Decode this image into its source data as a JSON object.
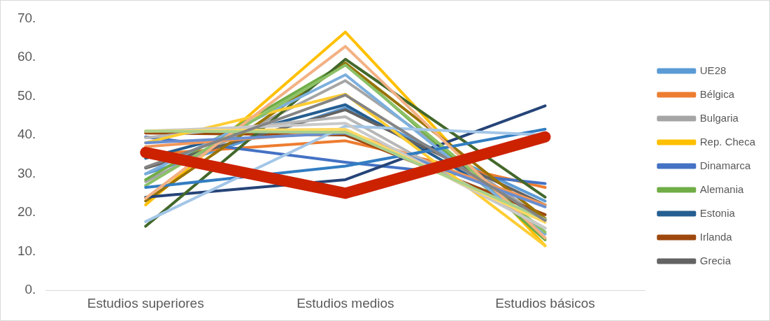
{
  "chart_data": {
    "type": "line",
    "categories": [
      "Estudios superiores",
      "Estudios medios",
      "Estudios básicos"
    ],
    "ylim": [
      0,
      70
    ],
    "yticks": [
      {
        "value": 0,
        "label": "0."
      },
      {
        "value": 10,
        "label": "10."
      },
      {
        "value": 20,
        "label": "20."
      },
      {
        "value": 30,
        "label": "30."
      },
      {
        "value": 40,
        "label": "40."
      },
      {
        "value": 50,
        "label": "50."
      },
      {
        "value": 60,
        "label": "60."
      },
      {
        "value": 70,
        "label": "70."
      }
    ],
    "grid": false,
    "legend": "right",
    "marker": "none",
    "line_style": "solid",
    "series": [
      {
        "name": "UE28",
        "color": "#5b9bd5",
        "values": [
          30,
          47,
          23
        ]
      },
      {
        "name": "Bélgica",
        "color": "#ed7d31",
        "values": [
          35,
          38.5,
          26.5
        ]
      },
      {
        "name": "Bulgaria",
        "color": "#a5a5a5",
        "values": [
          28,
          54,
          18
        ]
      },
      {
        "name": "Rep. Checa",
        "color": "#ffc000",
        "values": [
          22,
          66.5,
          11.5
        ]
      },
      {
        "name": "Dinamarca",
        "color": "#4472c4",
        "values": [
          39.5,
          33,
          27.5
        ]
      },
      {
        "name": "Alemania",
        "color": "#70ad47",
        "values": [
          28.5,
          58.5,
          13
        ]
      },
      {
        "name": "Estonia",
        "color": "#255e91",
        "values": [
          34,
          47.8,
          18.2
        ]
      },
      {
        "name": "Irlanda",
        "color": "#9e480e",
        "values": [
          40.5,
          40,
          19.5
        ]
      },
      {
        "name": "Grecia",
        "color": "#636363",
        "values": [
          31.5,
          46.5,
          22
        ]
      },
      {
        "color": "#997300",
        "values": [
          23,
          58.5,
          18.5
        ]
      },
      {
        "color": "#264478",
        "values": [
          24,
          28.5,
          47.5
        ]
      },
      {
        "color": "#43682b",
        "values": [
          16.5,
          59.5,
          24
        ]
      },
      {
        "color": "#7cafdd",
        "values": [
          30,
          55.5,
          14.5
        ]
      },
      {
        "color": "#f1975a",
        "values": [
          37,
          41,
          22
        ]
      },
      {
        "color": "#b7b7b7",
        "values": [
          39.3,
          44.7,
          16
        ]
      },
      {
        "color": "#ffcd33",
        "values": [
          38,
          50.5,
          11.5
        ]
      },
      {
        "color": "#698ed0",
        "values": [
          38,
          40.5,
          21.5
        ]
      },
      {
        "color": "#8cc168",
        "values": [
          27,
          58,
          15
        ]
      },
      {
        "color": "#327dc2",
        "values": [
          26.5,
          32,
          41.5
        ]
      },
      {
        "color": "#f3b183",
        "values": [
          23.7,
          62.8,
          13.5
        ]
      },
      {
        "color": "#a3c6e7",
        "values": [
          17.7,
          42.3,
          40
        ]
      },
      {
        "color": "#c9c9c9",
        "values": [
          41,
          43,
          16
        ]
      },
      {
        "color": "#ffd966",
        "values": [
          41,
          41.5,
          17.5
        ]
      },
      {
        "color": "#a9d18e",
        "values": [
          41,
          40.7,
          18.3
        ]
      },
      {
        "color": "#848484",
        "values": [
          31.7,
          50.3,
          18
        ]
      },
      {
        "color": "#cc2200",
        "values": [
          35.5,
          25,
          39.5
        ]
      }
    ]
  }
}
